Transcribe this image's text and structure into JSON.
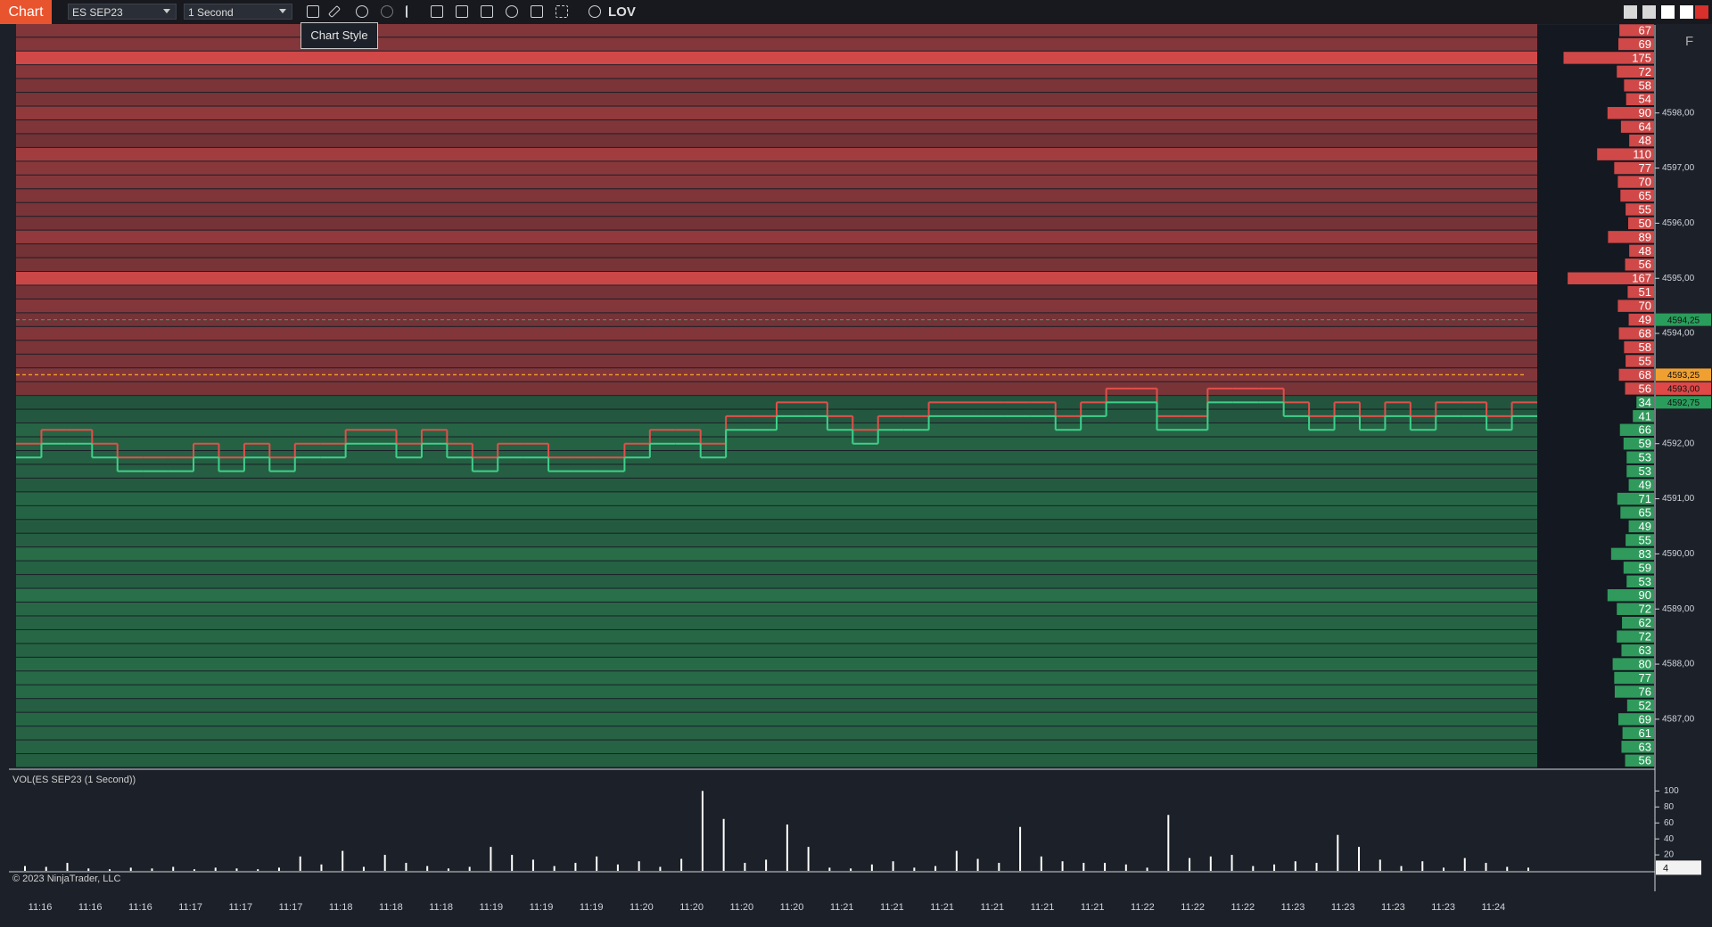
{
  "toolbar": {
    "app_label": "Chart",
    "instrument": "ES SEP23",
    "interval": "1 Second",
    "workspace": "LOV",
    "tooltip": "Chart Style",
    "side_button": "F"
  },
  "copyright": "© 2023 NinjaTrader, LLC",
  "chart_data": [
    {
      "type": "heatmap",
      "ylim": [
        4586.125,
        4599.5
      ],
      "yticks": [
        {
          "value": 4598,
          "label": "4598,00"
        },
        {
          "value": 4597,
          "label": "4597,00"
        },
        {
          "value": 4596,
          "label": "4596,00"
        },
        {
          "value": 4595,
          "label": "4595,00"
        },
        {
          "value": 4594,
          "label": "4594,00"
        },
        {
          "value": 4592,
          "label": "4592,00"
        },
        {
          "value": 4591,
          "label": "4591,00"
        },
        {
          "value": 4590,
          "label": "4590,00"
        },
        {
          "value": 4589,
          "label": "4589,00"
        },
        {
          "value": 4588,
          "label": "4588,00"
        },
        {
          "value": 4587,
          "label": "4587,00"
        }
      ],
      "markers": [
        {
          "value": 4594.25,
          "label": "4594,25",
          "color": "#2a9d5c",
          "dashed": true
        },
        {
          "value": 4593.25,
          "label": "4593,25",
          "color": "#f0a030",
          "dashed": true
        },
        {
          "value": 4593,
          "label": "4593,00",
          "color": "#e04848",
          "dashed": false
        },
        {
          "value": 4592.75,
          "label": "4592,75",
          "color": "#2a9d5c",
          "dashed": false
        }
      ],
      "ask_color": "#d04848",
      "bid_color": "#2f9a5c",
      "rows": [
        {
          "price": 4599.5,
          "volume": 67
        },
        {
          "price": 4599.25,
          "volume": 69
        },
        {
          "price": 4599,
          "volume": 175
        },
        {
          "price": 4598.75,
          "volume": 72
        },
        {
          "price": 4598.5,
          "volume": 58
        },
        {
          "price": 4598.25,
          "volume": 54
        },
        {
          "price": 4598,
          "volume": 90
        },
        {
          "price": 4597.75,
          "volume": 64
        },
        {
          "price": 4597.5,
          "volume": 48
        },
        {
          "price": 4597.25,
          "volume": 110
        },
        {
          "price": 4597,
          "volume": 77
        },
        {
          "price": 4596.75,
          "volume": 70
        },
        {
          "price": 4596.5,
          "volume": 65
        },
        {
          "price": 4596.25,
          "volume": 55
        },
        {
          "price": 4596,
          "volume": 50
        },
        {
          "price": 4595.75,
          "volume": 89
        },
        {
          "price": 4595.5,
          "volume": 48
        },
        {
          "price": 4595.25,
          "volume": 56
        },
        {
          "price": 4595,
          "volume": 167
        },
        {
          "price": 4594.75,
          "volume": 51
        },
        {
          "price": 4594.5,
          "volume": 70
        },
        {
          "price": 4594.25,
          "volume": 49
        },
        {
          "price": 4594,
          "volume": 68
        },
        {
          "price": 4593.75,
          "volume": 58
        },
        {
          "price": 4593.5,
          "volume": 55
        },
        {
          "price": 4593.25,
          "volume": 68
        },
        {
          "price": 4593,
          "volume": 56
        },
        {
          "price": 4592.75,
          "volume": 34
        },
        {
          "price": 4592.5,
          "volume": 41
        },
        {
          "price": 4592.25,
          "volume": 66
        },
        {
          "price": 4592,
          "volume": 59
        },
        {
          "price": 4591.75,
          "volume": 53
        },
        {
          "price": 4591.5,
          "volume": 53
        },
        {
          "price": 4591.25,
          "volume": 49
        },
        {
          "price": 4591,
          "volume": 71
        },
        {
          "price": 4590.75,
          "volume": 65
        },
        {
          "price": 4590.5,
          "volume": 49
        },
        {
          "price": 4590.25,
          "volume": 55
        },
        {
          "price": 4590,
          "volume": 83
        },
        {
          "price": 4589.75,
          "volume": 59
        },
        {
          "price": 4589.5,
          "volume": 53
        },
        {
          "price": 4589.25,
          "volume": 90
        },
        {
          "price": 4589,
          "volume": 72
        },
        {
          "price": 4588.75,
          "volume": 62
        },
        {
          "price": 4588.5,
          "volume": 72
        },
        {
          "price": 4588.25,
          "volume": 63
        },
        {
          "price": 4588,
          "volume": 80
        },
        {
          "price": 4587.75,
          "volume": 77
        },
        {
          "price": 4587.5,
          "volume": 76
        },
        {
          "price": 4587.25,
          "volume": 52
        },
        {
          "price": 4587,
          "volume": 69
        },
        {
          "price": 4586.75,
          "volume": 61
        },
        {
          "price": 4586.5,
          "volume": 63
        },
        {
          "price": 4586.25,
          "volume": 56
        }
      ],
      "series": [
        {
          "name": "Ask",
          "color": "#e0504a",
          "values": [
            4592.0,
            4592.25,
            4592.25,
            4592.0,
            4591.75,
            4591.75,
            4591.75,
            4592.0,
            4591.75,
            4592.0,
            4591.75,
            4592.0,
            4592.0,
            4592.25,
            4592.25,
            4592.0,
            4592.25,
            4592.0,
            4591.75,
            4592.0,
            4592.0,
            4591.75,
            4591.75,
            4591.75,
            4592.0,
            4592.25,
            4592.25,
            4592.0,
            4592.5,
            4592.5,
            4592.75,
            4592.75,
            4592.5,
            4592.25,
            4592.5,
            4592.5,
            4592.75,
            4592.75,
            4592.75,
            4592.75,
            4592.75,
            4592.5,
            4592.75,
            4593.0,
            4593.0,
            4592.5,
            4592.5,
            4593.0,
            4593.0,
            4593.0,
            4592.75,
            4592.5,
            4592.75,
            4592.5,
            4592.75,
            4592.5,
            4592.75,
            4592.75,
            4592.5,
            4592.75
          ]
        },
        {
          "name": "Bid",
          "color": "#3fd08a",
          "values": [
            4591.75,
            4592.0,
            4592.0,
            4591.75,
            4591.5,
            4591.5,
            4591.5,
            4591.75,
            4591.5,
            4591.75,
            4591.5,
            4591.75,
            4591.75,
            4592.0,
            4592.0,
            4591.75,
            4592.0,
            4591.75,
            4591.5,
            4591.75,
            4591.75,
            4591.5,
            4591.5,
            4591.5,
            4591.75,
            4592.0,
            4592.0,
            4591.75,
            4592.25,
            4592.25,
            4592.5,
            4592.5,
            4592.25,
            4592.0,
            4592.25,
            4592.25,
            4592.5,
            4592.5,
            4592.5,
            4592.5,
            4592.5,
            4592.25,
            4592.5,
            4592.75,
            4592.75,
            4592.25,
            4592.25,
            4592.75,
            4592.75,
            4592.75,
            4592.5,
            4592.25,
            4592.5,
            4592.25,
            4592.5,
            4592.25,
            4592.5,
            4592.5,
            4592.25,
            4592.5
          ]
        }
      ],
      "time_labels": [
        "11:16",
        "11:16",
        "11:16",
        "11:17",
        "11:17",
        "11:17",
        "11:18",
        "11:18",
        "11:18",
        "11:19",
        "11:19",
        "11:19",
        "11:20",
        "11:20",
        "11:20",
        "11:20",
        "11:21",
        "11:21",
        "11:21",
        "11:21",
        "11:21",
        "11:21",
        "11:22",
        "11:22",
        "11:22",
        "11:23",
        "11:23",
        "11:23",
        "11:23",
        "11:24"
      ]
    },
    {
      "type": "bar",
      "title": "VOL(ES SEP23 (1 Second))",
      "color": "#ffffff",
      "ylim": [
        0,
        125
      ],
      "yticks": [
        100,
        80,
        60,
        40,
        20
      ],
      "last_value": 4,
      "values": [
        6,
        5,
        10,
        3,
        2,
        4,
        3,
        5,
        2,
        4,
        3,
        2,
        4,
        18,
        8,
        25,
        5,
        20,
        10,
        6,
        3,
        5,
        30,
        20,
        14,
        6,
        10,
        18,
        8,
        12,
        5,
        15,
        100,
        65,
        10,
        14,
        58,
        30,
        4,
        3,
        8,
        12,
        4,
        6,
        25,
        15,
        10,
        55,
        18,
        12,
        10,
        10,
        8,
        4,
        70,
        16,
        18,
        20,
        6,
        8,
        12,
        10,
        45,
        30,
        14,
        6,
        12,
        4,
        16,
        10,
        5,
        4
      ]
    }
  ]
}
